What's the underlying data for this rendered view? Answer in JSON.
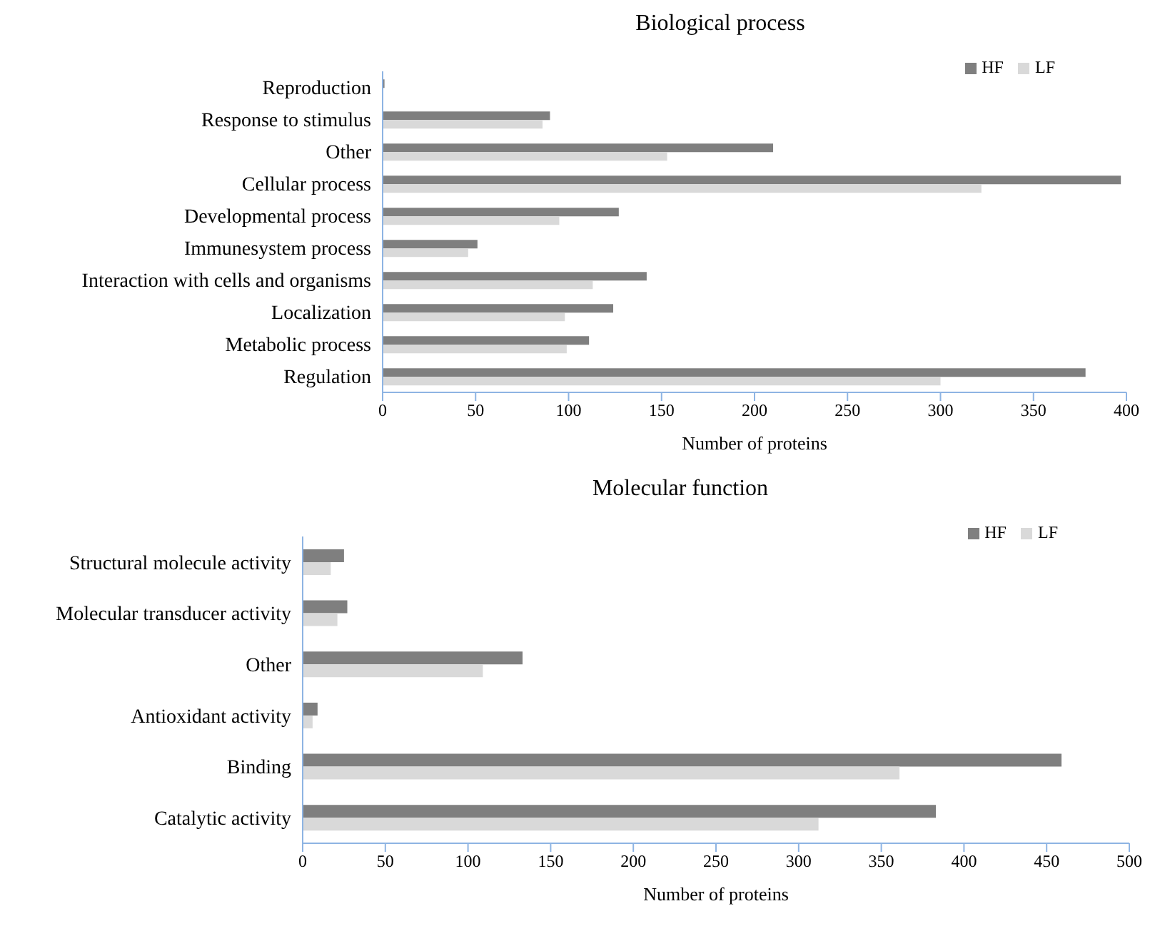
{
  "chart_data": [
    {
      "type": "bar",
      "orientation": "horizontal",
      "title": "Biological process",
      "xlabel": "Number of proteins",
      "categories": [
        "Reproduction",
        "Response to stimulus",
        "Other",
        "Cellular process",
        "Developmental process",
        "Immunesystem process",
        "Interaction with cells and organisms",
        "Localization",
        "Metabolic process",
        "Regulation"
      ],
      "series": [
        {
          "name": "HF",
          "color": "#7f7f7f",
          "values": [
            1,
            90,
            210,
            397,
            127,
            51,
            142,
            124,
            111,
            378
          ]
        },
        {
          "name": "LF",
          "color": "#d9d9d9",
          "values": [
            null,
            86,
            153,
            322,
            95,
            46,
            113,
            98,
            99,
            300
          ]
        }
      ],
      "xlim": [
        0,
        400
      ],
      "xticks": [
        0,
        50,
        100,
        150,
        200,
        250,
        300,
        350,
        400
      ],
      "legend": "top right",
      "grid": false
    },
    {
      "type": "bar",
      "orientation": "horizontal",
      "title": "Molecular function",
      "xlabel": "Number of proteins",
      "categories": [
        "Structural molecule activity",
        "Molecular transducer activity",
        "Other",
        "Antioxidant activity",
        "Binding",
        "Catalytic activity"
      ],
      "series": [
        {
          "name": "HF",
          "color": "#7f7f7f",
          "values": [
            25,
            27,
            133,
            9,
            459,
            383
          ]
        },
        {
          "name": "LF",
          "color": "#d9d9d9",
          "values": [
            17,
            21,
            109,
            6,
            361,
            312
          ]
        }
      ],
      "xlim": [
        0,
        500
      ],
      "xticks": [
        0,
        50,
        100,
        150,
        200,
        250,
        300,
        350,
        400,
        450,
        500
      ],
      "legend": "top right",
      "grid": false
    }
  ]
}
